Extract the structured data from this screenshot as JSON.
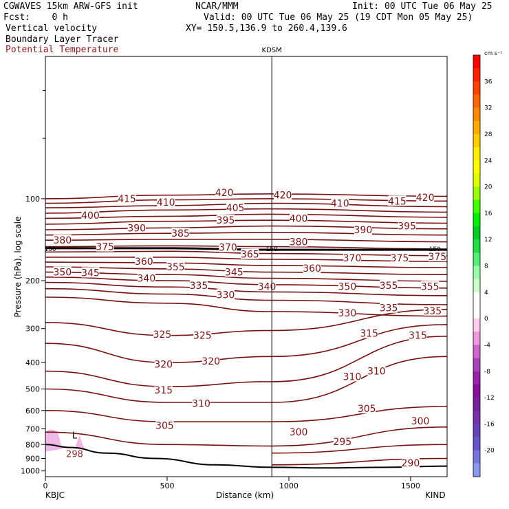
{
  "header": {
    "model": "CGWAVES 15km ARW-GFS init",
    "center": "NCAR/MMM",
    "init": "Init: 00 UTC Tue 06 May 25",
    "fcst": "Fcst:    0 h",
    "valid": "Valid: 00 UTC Tue 06 May 25 (19 CDT Mon 05 May 25)",
    "field1": "Vertical velocity",
    "xy": "XY= 150.5,136.9 to 260.4,139.6",
    "field2": "Boundary Layer Tracer",
    "field3": "Potential Temperature"
  },
  "chart_data": {
    "type": "cross-section",
    "title": "",
    "xlabel": "Distance (km)",
    "ylabel": "Pressure (hPa), log scale",
    "xlim": [
      0,
      1650
    ],
    "ylim": [
      1050,
      30
    ],
    "y_scale": "log",
    "x_ticks": [
      0,
      500,
      1000,
      1500
    ],
    "y_ticks": [
      100,
      200,
      300,
      400,
      500,
      600,
      700,
      800,
      900,
      1000
    ],
    "left_station": "KBJC",
    "right_station": "KIND",
    "mid_station": "KDSM",
    "mid_station_x": 930,
    "tropopause_label": "150",
    "tropopause_label_mid": "150",
    "tropopause_label_right": "150",
    "pbl_label": "L",
    "pbl_value": "298",
    "isentropes": [
      {
        "theta": 420,
        "pts": [
          [
            0,
            100
          ],
          [
            500,
            97
          ],
          [
            930,
            96
          ],
          [
            1650,
            98
          ]
        ]
      },
      {
        "theta": 415,
        "pts": [
          [
            0,
            104
          ],
          [
            500,
            101
          ],
          [
            930,
            100
          ],
          [
            1650,
            102
          ]
        ]
      },
      {
        "theta": 410,
        "pts": [
          [
            0,
            108
          ],
          [
            500,
            106
          ],
          [
            930,
            104
          ],
          [
            1650,
            107
          ]
        ]
      },
      {
        "theta": 405,
        "pts": [
          [
            0,
            113
          ],
          [
            500,
            110
          ],
          [
            930,
            109
          ],
          [
            1650,
            112
          ]
        ]
      },
      {
        "theta": 400,
        "pts": [
          [
            0,
            118
          ],
          [
            500,
            116
          ],
          [
            930,
            114
          ],
          [
            1650,
            117
          ]
        ]
      },
      {
        "theta": 395,
        "pts": [
          [
            0,
            124
          ],
          [
            500,
            121
          ],
          [
            930,
            120
          ],
          [
            1650,
            123
          ]
        ]
      },
      {
        "theta": 390,
        "pts": [
          [
            0,
            130
          ],
          [
            500,
            128
          ],
          [
            930,
            126
          ],
          [
            1650,
            129
          ]
        ]
      },
      {
        "theta": 385,
        "pts": [
          [
            0,
            136
          ],
          [
            500,
            134
          ],
          [
            930,
            133
          ],
          [
            1650,
            136
          ]
        ]
      },
      {
        "theta": 380,
        "pts": [
          [
            0,
            142
          ],
          [
            500,
            141
          ],
          [
            930,
            141
          ],
          [
            1650,
            144
          ]
        ]
      },
      {
        "theta": 375,
        "pts": [
          [
            0,
            150
          ],
          [
            500,
            149
          ],
          [
            930,
            150
          ],
          [
            1650,
            153
          ]
        ]
      },
      {
        "theta": 370,
        "pts": [
          [
            0,
            157
          ],
          [
            500,
            156
          ],
          [
            930,
            159
          ],
          [
            1650,
            162
          ]
        ]
      },
      {
        "theta": 365,
        "pts": [
          [
            0,
            164
          ],
          [
            500,
            164
          ],
          [
            930,
            167
          ],
          [
            1650,
            170
          ]
        ]
      },
      {
        "theta": 360,
        "pts": [
          [
            0,
            171
          ],
          [
            500,
            172
          ],
          [
            930,
            176
          ],
          [
            1650,
            179
          ]
        ]
      },
      {
        "theta": 355,
        "pts": [
          [
            0,
            178
          ],
          [
            500,
            181
          ],
          [
            930,
            186
          ],
          [
            1650,
            190
          ]
        ]
      },
      {
        "theta": 350,
        "pts": [
          [
            0,
            186
          ],
          [
            500,
            190
          ],
          [
            930,
            196
          ],
          [
            1650,
            201
          ]
        ]
      },
      {
        "theta": 345,
        "pts": [
          [
            0,
            194
          ],
          [
            500,
            200
          ],
          [
            930,
            207
          ],
          [
            1650,
            213
          ]
        ]
      },
      {
        "theta": 340,
        "pts": [
          [
            0,
            203
          ],
          [
            500,
            211
          ],
          [
            930,
            220
          ],
          [
            1650,
            227
          ]
        ]
      },
      {
        "theta": 335,
        "pts": [
          [
            0,
            214
          ],
          [
            500,
            224
          ],
          [
            930,
            236
          ],
          [
            1650,
            245
          ]
        ]
      },
      {
        "theta": 330,
        "pts": [
          [
            0,
            230
          ],
          [
            500,
            242
          ],
          [
            930,
            260
          ],
          [
            1650,
            270
          ]
        ]
      },
      {
        "theta": 325,
        "pts": [
          [
            0,
            285
          ],
          [
            500,
            318
          ],
          [
            930,
            305
          ],
          [
            1650,
            255
          ]
        ]
      },
      {
        "theta": 320,
        "pts": [
          [
            0,
            340
          ],
          [
            500,
            400
          ],
          [
            930,
            380
          ],
          [
            1650,
            290
          ]
        ]
      },
      {
        "theta": 315,
        "pts": [
          [
            0,
            430
          ],
          [
            500,
            490
          ],
          [
            930,
            470
          ],
          [
            1650,
            320
          ]
        ]
      },
      {
        "theta": 310,
        "pts": [
          [
            0,
            500
          ],
          [
            500,
            560
          ],
          [
            930,
            560
          ],
          [
            1650,
            380
          ]
        ]
      },
      {
        "theta": 305,
        "pts": [
          [
            0,
            600
          ],
          [
            500,
            660
          ],
          [
            930,
            660
          ],
          [
            1650,
            580
          ]
        ]
      },
      {
        "theta": 300,
        "pts": [
          [
            0,
            720
          ],
          [
            500,
            800
          ],
          [
            930,
            810
          ],
          [
            1650,
            690
          ]
        ]
      },
      {
        "theta": 295,
        "pts": [
          [
            930,
            860
          ],
          [
            1650,
            800
          ]
        ]
      },
      {
        "theta": 290,
        "pts": [
          [
            930,
            950
          ],
          [
            1650,
            900
          ]
        ]
      }
    ],
    "contour_labels": [
      {
        "t": "420",
        "x": 735,
        "p": 95
      },
      {
        "t": "415",
        "x": 335,
        "p": 100
      },
      {
        "t": "410",
        "x": 495,
        "p": 103
      },
      {
        "t": "420",
        "x": 975,
        "p": 97
      },
      {
        "t": "410",
        "x": 1210,
        "p": 104
      },
      {
        "t": "415",
        "x": 1445,
        "p": 102
      },
      {
        "t": "420",
        "x": 1560,
        "p": 99
      },
      {
        "t": "400",
        "x": 185,
        "p": 115
      },
      {
        "t": "405",
        "x": 780,
        "p": 108
      },
      {
        "t": "395",
        "x": 740,
        "p": 120
      },
      {
        "t": "400",
        "x": 1040,
        "p": 118
      },
      {
        "t": "390",
        "x": 1305,
        "p": 130
      },
      {
        "t": "395",
        "x": 1485,
        "p": 126
      },
      {
        "t": "390",
        "x": 375,
        "p": 128
      },
      {
        "t": "385",
        "x": 555,
        "p": 134
      },
      {
        "t": "380",
        "x": 70,
        "p": 142
      },
      {
        "t": "375",
        "x": 245,
        "p": 150
      },
      {
        "t": "370",
        "x": 750,
        "p": 151
      },
      {
        "t": "380",
        "x": 1040,
        "p": 144
      },
      {
        "t": "365",
        "x": 840,
        "p": 160
      },
      {
        "t": "360",
        "x": 405,
        "p": 170
      },
      {
        "t": "355",
        "x": 535,
        "p": 178
      },
      {
        "t": "360",
        "x": 1095,
        "p": 180
      },
      {
        "t": "370",
        "x": 1260,
        "p": 165
      },
      {
        "t": "375",
        "x": 1455,
        "p": 165
      },
      {
        "t": "375",
        "x": 1610,
        "p": 163
      },
      {
        "t": "350",
        "x": 70,
        "p": 186
      },
      {
        "t": "345",
        "x": 185,
        "p": 187
      },
      {
        "t": "340",
        "x": 415,
        "p": 196
      },
      {
        "t": "345",
        "x": 775,
        "p": 186
      },
      {
        "t": "335",
        "x": 630,
        "p": 208
      },
      {
        "t": "340",
        "x": 910,
        "p": 210
      },
      {
        "t": "350",
        "x": 1240,
        "p": 210
      },
      {
        "t": "355",
        "x": 1410,
        "p": 208
      },
      {
        "t": "355",
        "x": 1580,
        "p": 210
      },
      {
        "t": "330",
        "x": 740,
        "p": 225
      },
      {
        "t": "330",
        "x": 1240,
        "p": 263
      },
      {
        "t": "335",
        "x": 1410,
        "p": 252
      },
      {
        "t": "335",
        "x": 1590,
        "p": 258
      },
      {
        "t": "325",
        "x": 480,
        "p": 315
      },
      {
        "t": "325",
        "x": 645,
        "p": 318
      },
      {
        "t": "315",
        "x": 1330,
        "p": 312
      },
      {
        "t": "315",
        "x": 1530,
        "p": 318
      },
      {
        "t": "320",
        "x": 485,
        "p": 405
      },
      {
        "t": "320",
        "x": 680,
        "p": 395
      },
      {
        "t": "310",
        "x": 1260,
        "p": 450
      },
      {
        "t": "310",
        "x": 1360,
        "p": 430
      },
      {
        "t": "315",
        "x": 485,
        "p": 505
      },
      {
        "t": "310",
        "x": 640,
        "p": 565
      },
      {
        "t": "305",
        "x": 1320,
        "p": 590
      },
      {
        "t": "300",
        "x": 1540,
        "p": 655
      },
      {
        "t": "305",
        "x": 490,
        "p": 680
      },
      {
        "t": "300",
        "x": 1040,
        "p": 720
      },
      {
        "t": "295",
        "x": 1220,
        "p": 780
      },
      {
        "t": "290",
        "x": 1500,
        "p": 935
      }
    ],
    "ground": [
      [
        0,
        800
      ],
      [
        100,
        820
      ],
      [
        250,
        860
      ],
      [
        450,
        900
      ],
      [
        700,
        950
      ],
      [
        930,
        970
      ],
      [
        1150,
        975
      ],
      [
        1400,
        970
      ],
      [
        1650,
        960
      ]
    ],
    "colorbar": {
      "unit": "cm s⁻¹",
      "labels": [
        36,
        32,
        28,
        24,
        20,
        16,
        12,
        8,
        4,
        0,
        -4,
        -8,
        -12,
        -16,
        -20
      ],
      "colors": [
        "#ff0000",
        "#ff2200",
        "#ff4400",
        "#ff6600",
        "#ff8800",
        "#ffaa00",
        "#ffcc00",
        "#ffee00",
        "#ffff00",
        "#ddff00",
        "#99ff00",
        "#44ff00",
        "#00ee00",
        "#00cc22",
        "#22dd44",
        "#55ee77",
        "#99ffaa",
        "#ccffcc",
        "#ffffff",
        "#ffffff",
        "#ffccee",
        "#ee99dd",
        "#cc66cc",
        "#aa44bb",
        "#9922aa",
        "#881199",
        "#772299",
        "#7733aa",
        "#6644bb",
        "#6655cc",
        "#7777dd",
        "#8899ee"
      ]
    }
  }
}
